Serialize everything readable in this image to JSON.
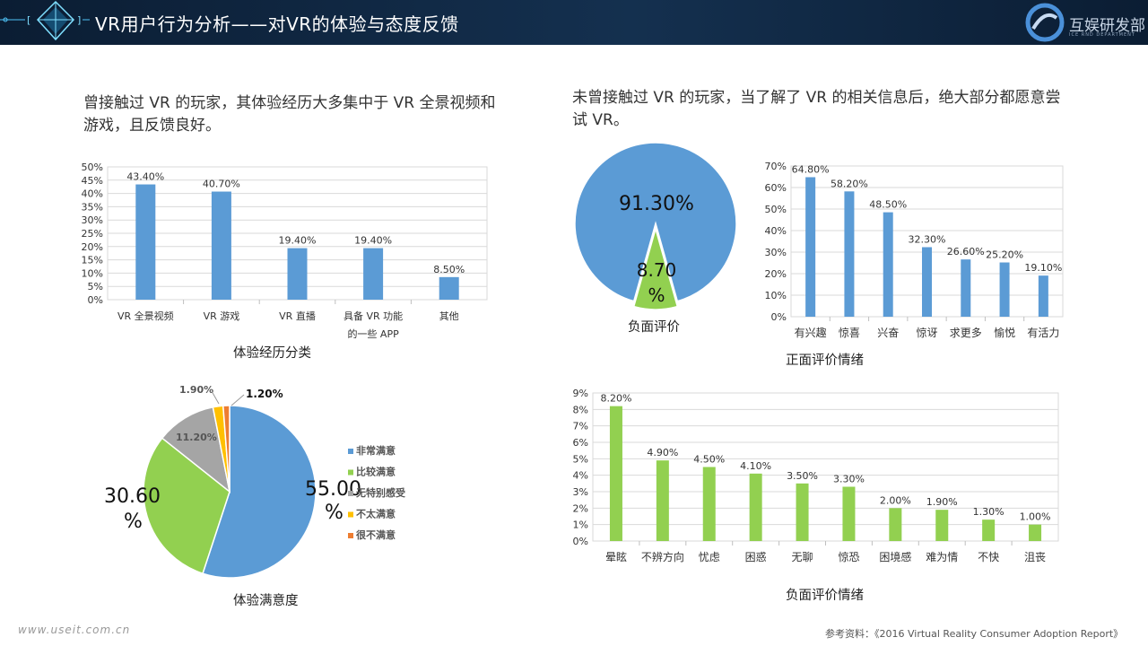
{
  "header": {
    "title": "VR用户行为分析——对VR的体验与态度反馈",
    "logo_text": "互娱研发部",
    "logo_sub": "ICE RND DEPARTMENT"
  },
  "left_desc": "曾接触过 VR 的玩家，其体验经历大多集中于 VR 全景视频和游戏，且反馈良好。",
  "right_desc": "未曾接触过 VR 的玩家，当了解了 VR 的相关信息后，绝大部分都愿意尝试 VR。",
  "footer": {
    "source": "参考资料：《2016 Virtual Reality Consumer Adoption Report》",
    "url": "www.useit.com.cn"
  },
  "colors": {
    "blue": "#5b9bd5",
    "green": "#92d050",
    "gray": "#a5a5a5",
    "yellow": "#ffc000",
    "orange": "#ed7d31"
  },
  "chart_data": [
    {
      "id": "experience",
      "type": "bar",
      "xlabel": "体验经历分类",
      "categories": [
        "VR 全景视频",
        "VR 游戏",
        "VR 直播",
        "具备 VR 功能|的一些 APP",
        "其他"
      ],
      "values": [
        43.4,
        40.7,
        19.4,
        19.4,
        8.5
      ],
      "value_labels": [
        "43.40%",
        "40.70%",
        "19.40%",
        "19.40%",
        "8.50%"
      ],
      "yticks": [
        "0%",
        "5%",
        "10%",
        "15%",
        "20%",
        "25%",
        "30%",
        "35%",
        "40%",
        "45%",
        "50%"
      ],
      "ylim": [
        0,
        50
      ],
      "color": "#5b9bd5"
    },
    {
      "id": "satisfaction",
      "type": "pie",
      "xlabel": "体验满意度",
      "labels": [
        "非常满意",
        "比较满意",
        "无特别感受",
        "不太满意",
        "很不满意"
      ],
      "values": [
        55.0,
        30.6,
        11.2,
        1.9,
        1.2
      ],
      "value_labels": [
        "55.00%",
        "30.60%",
        "11.20%",
        "1.90%",
        "1.20%"
      ],
      "colors": [
        "#5b9bd5",
        "#92d050",
        "#a5a5a5",
        "#ffc000",
        "#ed7d31"
      ],
      "legend": "right"
    },
    {
      "id": "willingness",
      "type": "pie",
      "xlabel": "负面评价",
      "values": [
        91.3,
        8.7
      ],
      "value_labels": [
        "91.30%",
        "8.70%"
      ],
      "colors": [
        "#5b9bd5",
        "#92d050"
      ]
    },
    {
      "id": "positive",
      "type": "bar",
      "xlabel": "正面评价情绪",
      "categories": [
        "有兴趣",
        "惊喜",
        "兴奋",
        "惊讶",
        "求更多",
        "愉悦",
        "有活力"
      ],
      "values": [
        64.8,
        58.2,
        48.5,
        32.3,
        26.6,
        25.2,
        19.1
      ],
      "value_labels": [
        "64.80%",
        "58.20%",
        "48.50%",
        "32.30%",
        "26.60%",
        "25.20%",
        "19.10%"
      ],
      "yticks": [
        "0%",
        "10%",
        "20%",
        "30%",
        "40%",
        "50%",
        "60%",
        "70%"
      ],
      "ylim": [
        0,
        70
      ],
      "color": "#5b9bd5"
    },
    {
      "id": "negative",
      "type": "bar",
      "xlabel": "负面评价情绪",
      "categories": [
        "晕眩",
        "不辨方向",
        "忧虑",
        "困惑",
        "无聊",
        "惊恐",
        "困境感",
        "难为情",
        "不快",
        "沮丧"
      ],
      "values": [
        8.2,
        4.9,
        4.5,
        4.1,
        3.5,
        3.3,
        2.0,
        1.9,
        1.3,
        1.0
      ],
      "value_labels": [
        "8.20%",
        "4.90%",
        "4.50%",
        "4.10%",
        "3.50%",
        "3.30%",
        "2.00%",
        "1.90%",
        "1.30%",
        "1.00%"
      ],
      "yticks": [
        "0%",
        "1%",
        "2%",
        "3%",
        "4%",
        "5%",
        "6%",
        "7%",
        "8%",
        "9%"
      ],
      "ylim": [
        0,
        9
      ],
      "color": "#92d050"
    }
  ]
}
